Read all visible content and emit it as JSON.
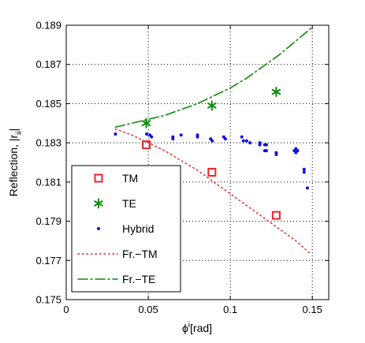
{
  "chart_data": {
    "type": "scatter",
    "xlabel": "ϕ",
    "xlabel_sup": "i",
    "xlabel_unit": "[rad]",
    "ylabel": "Reflection, |r",
    "ylabel_sub": "ii",
    "ylabel_end": "|",
    "xlim": [
      0,
      0.16
    ],
    "ylim": [
      0.175,
      0.189
    ],
    "x_ticks": [
      0,
      0.05,
      0.1,
      0.15
    ],
    "x_tick_labels": [
      "0",
      "0.05",
      "0.1",
      "0.15"
    ],
    "y_ticks": [
      0.175,
      0.177,
      0.179,
      0.181,
      0.183,
      0.185,
      0.187,
      0.189
    ],
    "y_tick_labels": [
      "0.175",
      "0.177",
      "0.179",
      "0.181",
      "0.183",
      "0.185",
      "0.187",
      "0.189"
    ],
    "grid": true,
    "legend_position": "bottom-left",
    "series": [
      {
        "name": "TM",
        "marker": "square",
        "color": "#e8242a",
        "x": [
          0.0488,
          0.0888,
          0.128
        ],
        "y": [
          0.1829,
          0.1815,
          0.1793
        ]
      },
      {
        "name": "TE",
        "marker": "asterisk",
        "color": "#0b8a0b",
        "x": [
          0.0488,
          0.0888,
          0.128
        ],
        "y": [
          0.184,
          0.1849,
          0.1856
        ]
      },
      {
        "name": "Hybrid",
        "marker": "dot",
        "color": "#1010e0",
        "x": [
          0.03,
          0.049,
          0.051,
          0.052,
          0.065,
          0.065,
          0.07,
          0.08,
          0.08,
          0.088,
          0.089,
          0.096,
          0.097,
          0.107,
          0.108,
          0.11,
          0.112,
          0.118,
          0.118,
          0.121,
          0.122,
          0.121,
          0.122,
          0.128,
          0.128,
          0.139,
          0.14,
          0.14,
          0.141,
          0.145,
          0.145,
          0.147
        ],
        "y": [
          0.18345,
          0.18345,
          0.1834,
          0.1833,
          0.1833,
          0.1832,
          0.1834,
          0.1834,
          0.1833,
          0.1832,
          0.1831,
          0.1833,
          0.1832,
          0.1833,
          0.1831,
          0.1831,
          0.183,
          0.183,
          0.1829,
          0.1829,
          0.1829,
          0.1826,
          0.1826,
          0.1824,
          0.1825,
          0.1826,
          0.1825,
          0.1827,
          0.1826,
          0.18165,
          0.1815,
          0.1807
        ]
      },
      {
        "name": "Fr.−TM",
        "line": "dotted",
        "color": "#e8242a",
        "x": [
          0.03,
          0.04,
          0.05,
          0.06,
          0.07,
          0.08,
          0.09,
          0.1,
          0.11,
          0.12,
          0.13,
          0.14,
          0.148
        ],
        "y": [
          0.1837,
          0.1834,
          0.183,
          0.1826,
          0.1821,
          0.1816,
          0.181,
          0.1804,
          0.1798,
          0.1792,
          0.1786,
          0.178,
          0.1774
        ]
      },
      {
        "name": "Fr.−TE",
        "line": "dashdot",
        "color": "#0b8a0b",
        "x": [
          0.03,
          0.04,
          0.05,
          0.06,
          0.07,
          0.08,
          0.09,
          0.1,
          0.11,
          0.12,
          0.13,
          0.14,
          0.15
        ],
        "y": [
          0.1838,
          0.184,
          0.1842,
          0.1844,
          0.1847,
          0.185,
          0.1854,
          0.1858,
          0.1863,
          0.1869,
          0.1875,
          0.1882,
          0.1889
        ]
      }
    ]
  }
}
